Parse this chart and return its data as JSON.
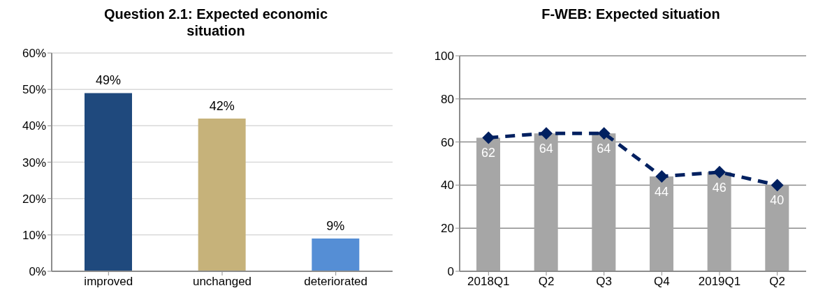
{
  "chart_data": [
    {
      "type": "bar",
      "title": "Question 2.1: Expected economic situation",
      "categories": [
        "improved",
        "unchanged",
        "deteriorated"
      ],
      "series": [
        {
          "values": [
            49,
            42,
            9
          ],
          "colors": [
            "#1f497d",
            "#c6b27a",
            "#558ed5"
          ],
          "value_labels": [
            "49%",
            "42%",
            "9%"
          ]
        }
      ],
      "ylim": [
        0,
        60
      ],
      "yticks": [
        {
          "value": 0,
          "label": "0%"
        },
        {
          "value": 10,
          "label": "10%"
        },
        {
          "value": 20,
          "label": "20%"
        },
        {
          "value": 30,
          "label": "30%"
        },
        {
          "value": 40,
          "label": "40%"
        },
        {
          "value": 50,
          "label": "50%"
        },
        {
          "value": 60,
          "label": "60%"
        }
      ],
      "grid": "y",
      "legend": false
    },
    {
      "type": "bar",
      "title": "F-WEB: Expected situation",
      "categories": [
        "2018Q1",
        "Q2",
        "Q3",
        "Q4",
        "2019Q1",
        "Q2"
      ],
      "series": [
        {
          "color": "#a6a6a6",
          "values": [
            62,
            64,
            64,
            44,
            46,
            40
          ],
          "value_labels": [
            "62",
            "64",
            "64",
            "44",
            "46",
            "40"
          ]
        },
        {
          "type": "line",
          "color": "#002060",
          "values": [
            62,
            64,
            64,
            44,
            46,
            40
          ],
          "marker": "diamond",
          "line_style": "dashed"
        }
      ],
      "ylim": [
        0,
        100
      ],
      "yticks": [
        0,
        20,
        40,
        60,
        80,
        100
      ],
      "grid": "y",
      "legend": false
    }
  ]
}
